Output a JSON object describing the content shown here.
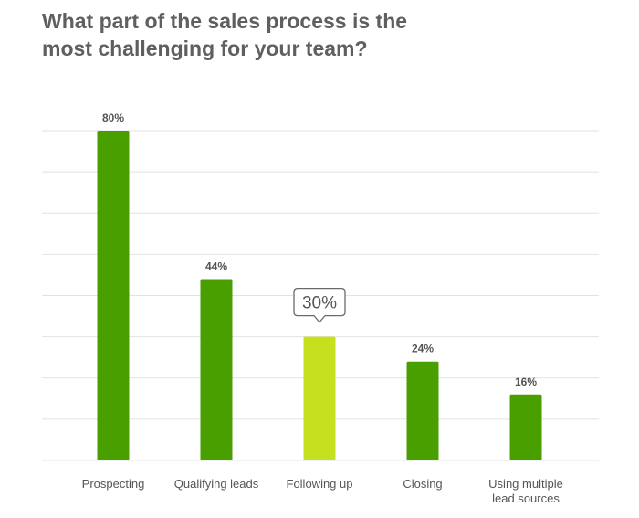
{
  "title": {
    "line1": "What part of the sales process is the",
    "line2": "most challenging for your team?"
  },
  "colors": {
    "bar": "#4a9f00",
    "highlight": "#c5e01f",
    "grid": "#e2e2e2",
    "title": "#5f5f5f",
    "label": "#555555"
  },
  "chart_data": {
    "type": "bar",
    "title": "What part of the sales process is the most challenging for your team?",
    "xlabel": "",
    "ylabel": "",
    "ylim": [
      0,
      80
    ],
    "grid": true,
    "legend": "none",
    "categories": [
      [
        "Prospecting"
      ],
      [
        "Qualifying leads"
      ],
      [
        "Following up"
      ],
      [
        "Closing"
      ],
      [
        "Using multiple",
        "lead sources"
      ]
    ],
    "values": [
      80,
      44,
      30,
      24,
      16
    ],
    "value_labels": [
      "80%",
      "44%",
      "30%",
      "24%",
      "16%"
    ],
    "highlight_index": 2
  }
}
